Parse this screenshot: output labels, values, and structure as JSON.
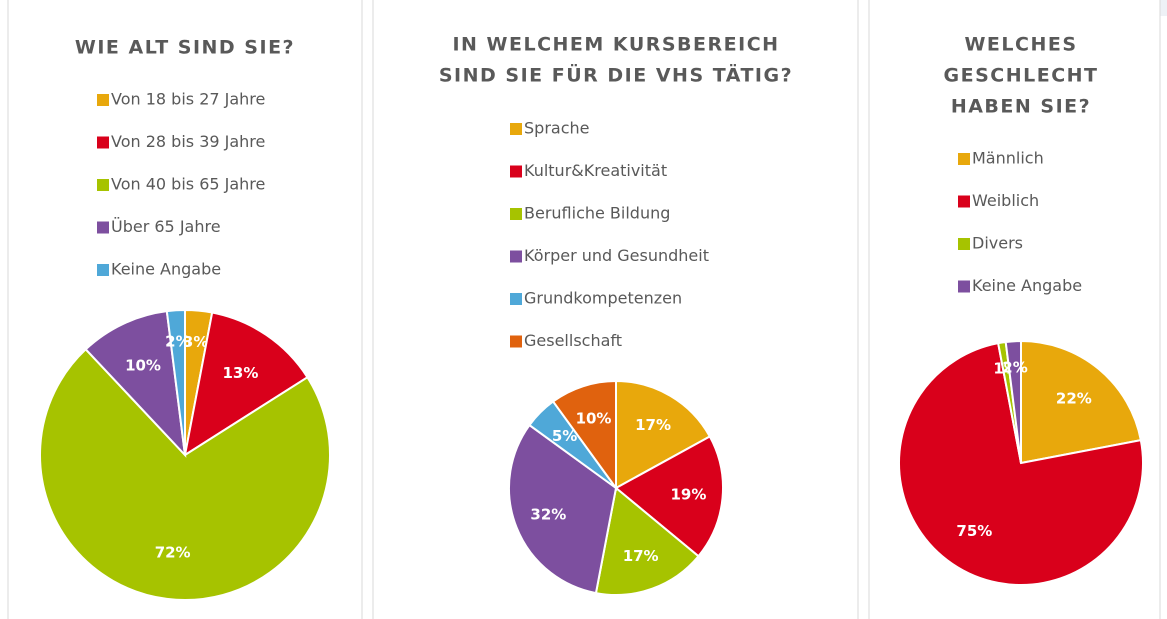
{
  "chart_data": [
    {
      "type": "pie",
      "title": [
        "WIE ALT SIND SIE?"
      ],
      "categories": [
        "Von 18 bis 27 Jahre",
        "Von 28 bis 39 Jahre",
        "Von 40 bis 65 Jahre",
        "Über 65 Jahre",
        "Keine Angabe"
      ],
      "values": [
        3,
        13,
        72,
        10,
        2
      ],
      "value_labels": [
        "3%",
        "13%",
        "72%",
        "10%",
        "2%"
      ],
      "colors": [
        "#e8a80c",
        "#d9001b",
        "#a6c300",
        "#7d4f9f",
        "#4fa8d8"
      ]
    },
    {
      "type": "pie",
      "title": [
        "IN WELCHEM KURSBEREICH",
        "SIND SIE FÜR DIE VHS TÄTIG?"
      ],
      "categories": [
        "Sprache",
        "Kultur&Kreativität",
        "Berufliche Bildung",
        "Körper und Gesundheit",
        "Grundkompetenzen",
        "Gesellschaft"
      ],
      "values": [
        17,
        19,
        17,
        32,
        5,
        10
      ],
      "value_labels": [
        "17%",
        "19%",
        "17%",
        "32%",
        "5%",
        "10%"
      ],
      "colors": [
        "#e8a80c",
        "#d9001b",
        "#a6c300",
        "#7d4f9f",
        "#4fa8d8",
        "#e0620e"
      ]
    },
    {
      "type": "pie",
      "title": [
        "WELCHES",
        "GESCHLECHT",
        "HABEN SIE?"
      ],
      "categories": [
        "Männlich",
        "Weiblich",
        "Divers",
        "Keine Angabe"
      ],
      "values": [
        22,
        75,
        1,
        2
      ],
      "value_labels": [
        "22%",
        "75%",
        "1%",
        "2%"
      ],
      "colors": [
        "#e8a80c",
        "#d9001b",
        "#a6c300",
        "#7d4f9f"
      ]
    }
  ]
}
